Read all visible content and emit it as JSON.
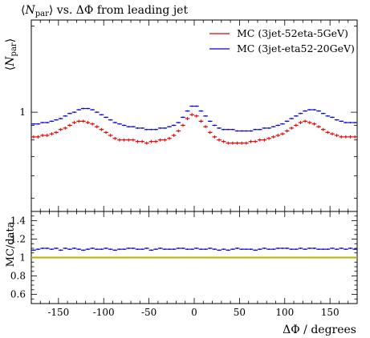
{
  "chart_data": {
    "type": "scatter",
    "title": "⟨N_par⟩ vs. ΔΦ from leading jet",
    "title_parts": {
      "open": "⟨",
      "sym": "N",
      "sub": "par",
      "rest": "⟩ vs. ΔΦ from leading jet"
    },
    "ylabel_main": "⟨N_par⟩",
    "ylabel_main_parts": {
      "open": "⟨",
      "sym": "N",
      "sub": "par",
      "close": "⟩"
    },
    "ylabel_ratio": "MC/data",
    "xlabel": "ΔΦ / degrees",
    "xlim": [
      -180,
      180
    ],
    "xticks": [
      -150,
      -100,
      -50,
      0,
      50,
      100,
      150
    ],
    "xtick_labels": [
      "-150",
      "-100",
      "-50",
      "0",
      "50",
      "100",
      "150"
    ],
    "main_ylim": [
      0.45,
      2.1
    ],
    "main_yscale": "log",
    "main_ytick_labels": [
      {
        "value": 1,
        "label": "1"
      }
    ],
    "ratio_ylim": [
      0.5,
      1.5
    ],
    "ratio_yticks": [
      0.6,
      0.8,
      1.0,
      1.2,
      1.4
    ],
    "ratio_ytick_labels": [
      "0.6",
      "0.8",
      "1",
      "1.2",
      "1.4"
    ],
    "ratio_reference": {
      "value": 1.0,
      "color": "#b3b300"
    },
    "legend": {
      "placement": "top-right"
    },
    "bin_width": 5,
    "x": [
      -177.5,
      -172.5,
      -167.5,
      -162.5,
      -157.5,
      -152.5,
      -147.5,
      -142.5,
      -137.5,
      -132.5,
      -127.5,
      -122.5,
      -117.5,
      -112.5,
      -107.5,
      -102.5,
      -97.5,
      -92.5,
      -87.5,
      -82.5,
      -77.5,
      -72.5,
      -67.5,
      -62.5,
      -57.5,
      -52.5,
      -47.5,
      -42.5,
      -37.5,
      -32.5,
      -27.5,
      -22.5,
      -17.5,
      -12.5,
      -7.5,
      -2.5,
      2.5,
      7.5,
      12.5,
      17.5,
      22.5,
      27.5,
      32.5,
      37.5,
      42.5,
      47.5,
      52.5,
      57.5,
      62.5,
      67.5,
      72.5,
      77.5,
      82.5,
      87.5,
      92.5,
      97.5,
      102.5,
      107.5,
      112.5,
      117.5,
      122.5,
      127.5,
      132.5,
      137.5,
      142.5,
      147.5,
      152.5,
      157.5,
      162.5,
      167.5,
      172.5,
      177.5
    ],
    "series": [
      {
        "name": "MC (3jet-52eta-5GeV)",
        "color": "#e00000",
        "marker": "plus",
        "values": [
          0.82,
          0.82,
          0.83,
          0.83,
          0.84,
          0.85,
          0.87,
          0.88,
          0.9,
          0.92,
          0.93,
          0.93,
          0.92,
          0.91,
          0.89,
          0.87,
          0.85,
          0.83,
          0.81,
          0.8,
          0.8,
          0.8,
          0.8,
          0.79,
          0.79,
          0.78,
          0.79,
          0.79,
          0.8,
          0.8,
          0.81,
          0.83,
          0.86,
          0.9,
          0.95,
          0.98,
          0.97,
          0.93,
          0.89,
          0.85,
          0.82,
          0.8,
          0.79,
          0.78,
          0.78,
          0.78,
          0.78,
          0.78,
          0.79,
          0.79,
          0.8,
          0.8,
          0.81,
          0.82,
          0.83,
          0.84,
          0.86,
          0.88,
          0.9,
          0.92,
          0.93,
          0.92,
          0.91,
          0.89,
          0.87,
          0.85,
          0.84,
          0.83,
          0.82,
          0.82,
          0.82,
          0.82
        ]
      },
      {
        "name": "MC (3jet-eta52-20GeV)",
        "color": "#0000e0",
        "marker": "hbar",
        "values": [
          0.91,
          0.91,
          0.92,
          0.92,
          0.93,
          0.94,
          0.95,
          0.97,
          0.99,
          1.0,
          1.02,
          1.03,
          1.03,
          1.02,
          1.0,
          0.98,
          0.96,
          0.94,
          0.92,
          0.91,
          0.9,
          0.89,
          0.89,
          0.88,
          0.88,
          0.87,
          0.87,
          0.87,
          0.88,
          0.88,
          0.89,
          0.9,
          0.92,
          0.96,
          1.01,
          1.05,
          1.05,
          1.01,
          0.97,
          0.93,
          0.9,
          0.88,
          0.87,
          0.87,
          0.87,
          0.86,
          0.86,
          0.86,
          0.86,
          0.87,
          0.87,
          0.88,
          0.88,
          0.89,
          0.9,
          0.91,
          0.93,
          0.95,
          0.97,
          0.99,
          1.01,
          1.02,
          1.02,
          1.01,
          0.99,
          0.97,
          0.96,
          0.94,
          0.93,
          0.92,
          0.92,
          0.92
        ],
        "ratio": [
          1.08,
          1.09,
          1.1,
          1.1,
          1.09,
          1.1,
          1.08,
          1.1,
          1.09,
          1.1,
          1.09,
          1.08,
          1.09,
          1.1,
          1.09,
          1.09,
          1.1,
          1.09,
          1.08,
          1.09,
          1.09,
          1.1,
          1.1,
          1.09,
          1.09,
          1.1,
          1.08,
          1.09,
          1.1,
          1.09,
          1.09,
          1.09,
          1.1,
          1.1,
          1.09,
          1.09,
          1.1,
          1.09,
          1.09,
          1.1,
          1.09,
          1.08,
          1.09,
          1.08,
          1.09,
          1.1,
          1.09,
          1.09,
          1.09,
          1.08,
          1.09,
          1.1,
          1.09,
          1.09,
          1.1,
          1.1,
          1.1,
          1.09,
          1.09,
          1.1,
          1.09,
          1.1,
          1.1,
          1.09,
          1.09,
          1.09,
          1.1,
          1.09,
          1.1,
          1.09,
          1.1,
          1.09
        ]
      }
    ]
  }
}
